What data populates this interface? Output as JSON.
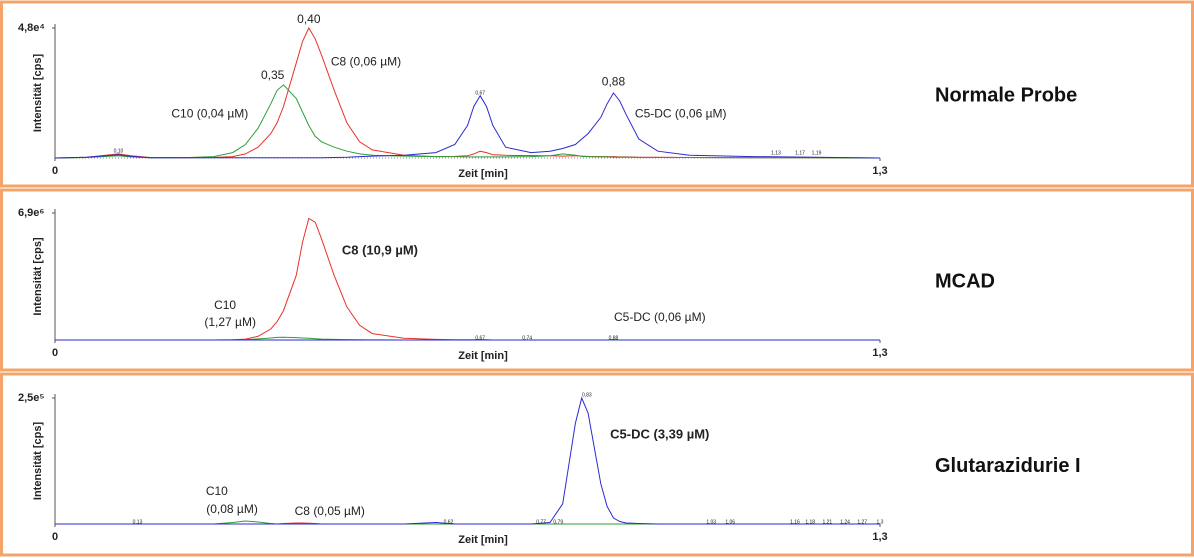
{
  "chart_data": [
    {
      "type": "line",
      "title": "Normale Probe",
      "ylabel": "Intensität [cps]",
      "xlabel": "Zeit [min]",
      "xlim": [
        0,
        1.3
      ],
      "xticks": [
        0,
        {
          "value": 1.3,
          "label": "1,3"
        }
      ],
      "ylim": [
        0,
        48000
      ],
      "yticks": [
        {
          "value": 48000,
          "label": "4,8e⁴"
        }
      ],
      "x": [
        0,
        0.05,
        0.08,
        0.1,
        0.12,
        0.15,
        0.2,
        0.25,
        0.28,
        0.3,
        0.32,
        0.34,
        0.35,
        0.36,
        0.38,
        0.39,
        0.4,
        0.41,
        0.42,
        0.44,
        0.46,
        0.48,
        0.5,
        0.55,
        0.6,
        0.63,
        0.65,
        0.66,
        0.67,
        0.68,
        0.69,
        0.71,
        0.75,
        0.78,
        0.8,
        0.82,
        0.83,
        0.84,
        0.86,
        0.87,
        0.88,
        0.89,
        0.9,
        0.92,
        0.95,
        1.0,
        1.1,
        1.2,
        1.3
      ],
      "series": [
        {
          "color": "#e8322a",
          "values": [
            0,
            300,
            1000,
            1500,
            800,
            200,
            100,
            200,
            500,
            1500,
            4000,
            9000,
            13000,
            19000,
            35000,
            43000,
            48000,
            44000,
            38000,
            25000,
            13000,
            6000,
            3000,
            1000,
            500,
            600,
            800,
            1500,
            2500,
            2000,
            1200,
            1000,
            900,
            800,
            700,
            800,
            700,
            600,
            500,
            500,
            500,
            400,
            400,
            300,
            300,
            200,
            100,
            100,
            0
          ]
        },
        {
          "color": "#2e9e3a",
          "values": [
            0,
            200,
            600,
            800,
            400,
            100,
            100,
            500,
            2000,
            5000,
            11000,
            20000,
            25000,
            27000,
            22000,
            17000,
            12000,
            8000,
            6000,
            4000,
            2500,
            1500,
            1000,
            700,
            500,
            500,
            400,
            400,
            400,
            400,
            400,
            400,
            500,
            800,
            1500,
            1000,
            600,
            500,
            400,
            400,
            300,
            300,
            300,
            200,
            200,
            200,
            100,
            100,
            0
          ]
        },
        {
          "color": "#2a2ad0",
          "values": [
            0,
            300,
            800,
            1200,
            600,
            100,
            100,
            100,
            100,
            100,
            100,
            100,
            100,
            100,
            100,
            100,
            100,
            100,
            100,
            200,
            300,
            500,
            700,
            1000,
            2000,
            5000,
            12000,
            19000,
            23000,
            19000,
            12000,
            4000,
            2000,
            2500,
            3500,
            5000,
            7000,
            9000,
            15000,
            20000,
            24000,
            21000,
            16000,
            7000,
            2500,
            1000,
            500,
            300,
            0
          ]
        }
      ],
      "annotations": [
        {
          "text": "0,40",
          "x": 0.4,
          "y": 51000
        },
        {
          "text": "C8 (0,06 µM)",
          "x": 0.49,
          "y": 35400
        },
        {
          "text": "0,35",
          "x": 0.343,
          "y": 30300
        },
        {
          "text": "C10 (0,04 µM)",
          "x": 0.244,
          "y": 16200
        },
        {
          "text": "0,67",
          "x": 0.67,
          "y": 24000,
          "small": true
        },
        {
          "text": "0,88",
          "x": 0.88,
          "y": 28000
        },
        {
          "text": "C5-DC (0,06 µM)",
          "x": 0.986,
          "y": 16200
        },
        {
          "text": "0,10",
          "x": 0.1,
          "y": 2600,
          "small": true
        },
        {
          "text": "1,13",
          "x": 1.136,
          "y": 1850,
          "small": true
        },
        {
          "text": "1,17",
          "x": 1.174,
          "y": 1850,
          "small": true
        },
        {
          "text": "1,19",
          "x": 1.2,
          "y": 1850,
          "small": true
        }
      ]
    },
    {
      "type": "line",
      "title": "MCAD",
      "ylabel": "Intensität [cps]",
      "xlabel": "Zeit [min]",
      "xlim": [
        0,
        1.3
      ],
      "xticks": [
        0,
        {
          "value": 1.3,
          "label": "1,3"
        }
      ],
      "ylim": [
        0,
        6900000
      ],
      "yticks": [
        {
          "value": 6900000,
          "label": "6,9e⁶"
        }
      ],
      "x": [
        0,
        0.05,
        0.08,
        0.1,
        0.12,
        0.15,
        0.2,
        0.25,
        0.28,
        0.3,
        0.32,
        0.34,
        0.35,
        0.36,
        0.38,
        0.39,
        0.4,
        0.41,
        0.42,
        0.44,
        0.46,
        0.48,
        0.5,
        0.55,
        0.6,
        0.63,
        0.65,
        0.66,
        0.67,
        0.68,
        0.69,
        0.71,
        0.75,
        0.78,
        0.8,
        0.82,
        0.83,
        0.84,
        0.86,
        0.87,
        0.88,
        0.89,
        0.9,
        0.92,
        0.95,
        1.0,
        1.1,
        1.2,
        1.3
      ],
      "series": [
        {
          "color": "#e8322a",
          "values": [
            0,
            0,
            0,
            0,
            0,
            0,
            0,
            0,
            10000,
            50000,
            200000,
            600000,
            1000000,
            1600000,
            3500000,
            5300000,
            6600000,
            6400000,
            5500000,
            3500000,
            1800000,
            800000,
            350000,
            100000,
            30000,
            10000,
            10000,
            10000,
            10000,
            10000,
            0,
            0,
            0,
            0,
            0,
            0,
            0,
            0,
            0,
            0,
            0,
            0,
            0,
            0,
            0,
            0,
            0,
            0,
            0
          ]
        },
        {
          "color": "#2e9e3a",
          "values": [
            0,
            0,
            0,
            0,
            0,
            0,
            0,
            0,
            5000,
            20000,
            60000,
            110000,
            140000,
            150000,
            130000,
            110000,
            90000,
            70000,
            50000,
            30000,
            20000,
            10000,
            5000,
            0,
            0,
            0,
            0,
            0,
            0,
            0,
            0,
            0,
            0,
            0,
            0,
            0,
            0,
            0,
            0,
            0,
            0,
            0,
            0,
            0,
            0,
            0,
            0,
            0,
            0
          ]
        },
        {
          "color": "#2a2ad0",
          "values": [
            0,
            0,
            0,
            0,
            0,
            0,
            0,
            0,
            0,
            0,
            0,
            0,
            0,
            0,
            0,
            0,
            0,
            0,
            0,
            0,
            0,
            0,
            0,
            0,
            0,
            0,
            0,
            0,
            15000,
            0,
            0,
            0,
            0,
            0,
            0,
            0,
            0,
            0,
            0,
            0,
            20000,
            0,
            0,
            0,
            0,
            0,
            0,
            0,
            0
          ]
        }
      ],
      "annotations": [
        {
          "text": "C8 (10,9 µM)",
          "x": 0.512,
          "y": 4835000,
          "bold": true
        },
        {
          "text": "C10",
          "x": 0.268,
          "y": 1847000
        },
        {
          "text": "(1,27 µM)",
          "x": 0.276,
          "y": 924000
        },
        {
          "text": "C5-DC (0,06 µM)",
          "x": 0.953,
          "y": 1195000
        },
        {
          "text": "0,67",
          "x": 0.67,
          "y": 109000,
          "small": true
        },
        {
          "text": "0,74",
          "x": 0.744,
          "y": 109000,
          "small": true
        },
        {
          "text": "0,88",
          "x": 0.88,
          "y": 109000,
          "small": true
        }
      ]
    },
    {
      "type": "line",
      "title": "Glutarazidurie I",
      "ylabel": "Intensität [cps]",
      "xlabel": "Zeit [min]",
      "xlim": [
        0,
        1.3
      ],
      "xticks": [
        0,
        {
          "value": 1.3,
          "label": "1,3"
        }
      ],
      "ylim": [
        0,
        250000
      ],
      "yticks": [
        {
          "value": 250000,
          "label": "2,5e⁵"
        }
      ],
      "x": [
        0,
        0.05,
        0.08,
        0.1,
        0.12,
        0.15,
        0.2,
        0.25,
        0.28,
        0.3,
        0.32,
        0.34,
        0.35,
        0.36,
        0.38,
        0.39,
        0.4,
        0.41,
        0.42,
        0.44,
        0.46,
        0.48,
        0.5,
        0.55,
        0.6,
        0.63,
        0.65,
        0.66,
        0.67,
        0.68,
        0.69,
        0.71,
        0.75,
        0.78,
        0.8,
        0.82,
        0.83,
        0.84,
        0.86,
        0.87,
        0.88,
        0.89,
        0.9,
        0.92,
        0.95,
        1.0,
        1.1,
        1.2,
        1.3
      ],
      "series": [
        {
          "color": "#e8322a",
          "values": [
            0,
            0,
            0,
            0,
            0,
            0,
            0,
            0,
            0,
            0,
            0,
            0,
            0,
            1000,
            2000,
            2000,
            1500,
            1000,
            0,
            0,
            0,
            0,
            0,
            0,
            0,
            0,
            0,
            0,
            0,
            0,
            0,
            0,
            0,
            0,
            0,
            0,
            0,
            0,
            0,
            0,
            0,
            0,
            0,
            0,
            0,
            0,
            0,
            0,
            0
          ]
        },
        {
          "color": "#2e9e3a",
          "values": [
            0,
            0,
            0,
            0,
            0,
            0,
            0,
            0,
            3000,
            6000,
            4000,
            1000,
            0,
            0,
            0,
            0,
            0,
            0,
            0,
            0,
            0,
            0,
            0,
            0,
            0,
            0,
            0,
            0,
            0,
            0,
            0,
            0,
            0,
            0,
            0,
            0,
            0,
            0,
            0,
            0,
            0,
            0,
            0,
            0,
            0,
            0,
            0,
            0,
            0
          ]
        },
        {
          "color": "#2a2ad0",
          "values": [
            0,
            0,
            0,
            0,
            0,
            0,
            0,
            0,
            0,
            0,
            0,
            0,
            0,
            0,
            0,
            0,
            0,
            0,
            0,
            0,
            0,
            0,
            0,
            0,
            3000,
            0,
            0,
            0,
            0,
            0,
            0,
            0,
            0,
            3000,
            40000,
            200000,
            250000,
            220000,
            80000,
            35000,
            12000,
            5000,
            2000,
            1000,
            0,
            0,
            0,
            0,
            0
          ]
        }
      ],
      "annotations": [
        {
          "text": "0,83",
          "x": 0.838,
          "y": 256000,
          "small": true
        },
        {
          "text": "C5-DC (3,39 µM)",
          "x": 0.953,
          "y": 176600,
          "bold": true
        },
        {
          "text": "C10",
          "x": 0.255,
          "y": 63500
        },
        {
          "text": "(0,08 µM)",
          "x": 0.279,
          "y": 27800
        },
        {
          "text": "C8 (0,05 µM)",
          "x": 0.433,
          "y": 23800
        },
        {
          "text": "0,13",
          "x": 0.13,
          "y": 4000,
          "small": true
        },
        {
          "text": "0,62",
          "x": 0.62,
          "y": 4000,
          "small": true
        },
        {
          "text": "0,77",
          "x": 0.766,
          "y": 4000,
          "small": true
        },
        {
          "text": "0,79",
          "x": 0.793,
          "y": 4000,
          "small": true
        },
        {
          "text": "1,03",
          "x": 1.034,
          "y": 4000,
          "small": true
        },
        {
          "text": "1,06",
          "x": 1.064,
          "y": 4000,
          "small": true
        },
        {
          "text": "1,16",
          "x": 1.166,
          "y": 4000,
          "small": true
        },
        {
          "text": "1,18",
          "x": 1.19,
          "y": 4000,
          "small": true
        },
        {
          "text": "1,21",
          "x": 1.217,
          "y": 4000,
          "small": true
        },
        {
          "text": "1,24",
          "x": 1.245,
          "y": 4000,
          "small": true
        },
        {
          "text": "1,27",
          "x": 1.272,
          "y": 4000,
          "small": true
        },
        {
          "text": "1,3",
          "x": 1.3,
          "y": 4000,
          "small": true
        }
      ]
    }
  ]
}
